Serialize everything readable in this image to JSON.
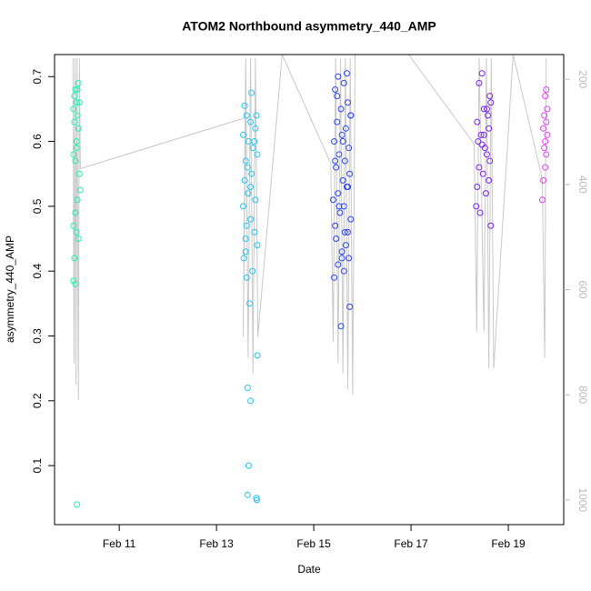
{
  "chart_data": {
    "type": "scatter",
    "title": "ATOM2 Northbound asymmetry_440_AMP",
    "xlabel": "Date",
    "ylabel": "asymmetry_440_AMP",
    "xlim": [
      9.67,
      20.14
    ],
    "ylim": [
      0.009,
      0.734
    ],
    "y2lim": [
      1047,
      153
    ],
    "xticks": [
      {
        "value": 11,
        "label": "Feb 11"
      },
      {
        "value": 13,
        "label": "Feb 13"
      },
      {
        "value": 15,
        "label": "Feb 15"
      },
      {
        "value": 17,
        "label": "Feb 17"
      },
      {
        "value": 19,
        "label": "Feb 19"
      }
    ],
    "yticks": [
      0.1,
      0.2,
      0.3,
      0.4,
      0.5,
      0.6,
      0.7
    ],
    "y2ticks": [
      200,
      400,
      600,
      800,
      1000
    ],
    "series": [
      {
        "color": "#22eeb4",
        "x": [
          10.08,
          10.12,
          10.06,
          10.1,
          10.14,
          10.16,
          10.12,
          10.06,
          10.1,
          10.18,
          10.14,
          10.1,
          10.06,
          10.12,
          10.16,
          10.08,
          10.06,
          10.1,
          10.14,
          10.16,
          10.18,
          10.08,
          10.12,
          10.2,
          10.13
        ],
        "values": [
          0.67,
          0.66,
          0.65,
          0.68,
          0.64,
          0.62,
          0.6,
          0.58,
          0.57,
          0.55,
          0.51,
          0.49,
          0.47,
          0.46,
          0.45,
          0.42,
          0.385,
          0.38,
          0.68,
          0.69,
          0.66,
          0.63,
          0.59,
          0.525,
          0.04
        ]
      },
      {
        "color": "#22c4f0",
        "x": [
          13.58,
          13.62,
          13.7,
          13.8,
          13.55,
          13.66,
          13.75,
          13.84,
          13.6,
          13.72,
          13.58,
          13.65,
          13.8,
          13.55,
          13.7,
          13.62,
          13.78,
          13.84,
          13.6,
          13.56,
          13.74,
          13.62,
          13.68,
          13.72,
          13.82,
          13.78,
          13.64,
          13.7,
          13.6,
          13.84,
          13.64,
          13.7,
          13.66,
          13.64,
          13.82,
          13.83
        ],
        "values": [
          0.655,
          0.64,
          0.63,
          0.62,
          0.61,
          0.6,
          0.59,
          0.58,
          0.57,
          0.55,
          0.54,
          0.52,
          0.51,
          0.5,
          0.48,
          0.47,
          0.46,
          0.44,
          0.43,
          0.42,
          0.4,
          0.39,
          0.35,
          0.675,
          0.64,
          0.6,
          0.56,
          0.53,
          0.45,
          0.27,
          0.22,
          0.2,
          0.1,
          0.055,
          0.05,
          0.047
        ]
      },
      {
        "color": "#2a44ee",
        "x": [
          15.5,
          15.62,
          15.44,
          15.7,
          15.56,
          15.76,
          15.48,
          15.66,
          15.58,
          15.42,
          15.72,
          15.52,
          15.64,
          15.46,
          15.74,
          15.6,
          15.68,
          15.5,
          15.4,
          15.62,
          15.54,
          15.76,
          15.44,
          15.7,
          15.46,
          15.66,
          15.58,
          15.72,
          15.5,
          15.62,
          15.42,
          15.74,
          15.56,
          15.68,
          15.48,
          15.76,
          15.6,
          15.44,
          15.7,
          15.52,
          15.64,
          15.58
        ],
        "values": [
          0.7,
          0.69,
          0.68,
          0.66,
          0.65,
          0.64,
          0.63,
          0.62,
          0.61,
          0.6,
          0.59,
          0.58,
          0.57,
          0.56,
          0.55,
          0.54,
          0.53,
          0.52,
          0.51,
          0.5,
          0.49,
          0.48,
          0.47,
          0.46,
          0.45,
          0.44,
          0.43,
          0.42,
          0.41,
          0.4,
          0.39,
          0.345,
          0.315,
          0.705,
          0.67,
          0.64,
          0.6,
          0.57,
          0.53,
          0.5,
          0.46,
          0.42
        ]
      },
      {
        "color": "#7a22ee",
        "x": [
          18.46,
          18.4,
          18.62,
          18.64,
          18.5,
          18.58,
          18.36,
          18.6,
          18.44,
          18.38,
          18.52,
          18.56,
          18.62,
          18.4,
          18.48,
          18.6,
          18.36,
          18.54,
          18.34,
          18.42,
          18.64,
          18.56,
          18.5,
          18.46
        ],
        "values": [
          0.705,
          0.69,
          0.67,
          0.66,
          0.65,
          0.64,
          0.63,
          0.62,
          0.61,
          0.6,
          0.59,
          0.58,
          0.57,
          0.56,
          0.55,
          0.54,
          0.53,
          0.52,
          0.5,
          0.49,
          0.47,
          0.65,
          0.61,
          0.595
        ]
      },
      {
        "color": "#e040ee",
        "x": [
          19.78,
          19.76,
          19.8,
          19.74,
          19.78,
          19.72,
          19.8,
          19.76,
          19.74,
          19.78,
          19.76,
          19.72,
          19.7
        ],
        "values": [
          0.68,
          0.67,
          0.65,
          0.64,
          0.63,
          0.62,
          0.61,
          0.6,
          0.59,
          0.58,
          0.56,
          0.54,
          0.51
        ]
      },
      {
        "type": "line",
        "axis": "y2",
        "color": "#c8c8c8",
        "x": [
          10.05,
          10.07,
          10.09,
          10.11,
          10.13,
          10.16,
          10.18,
          10.2,
          13.6,
          13.55,
          13.6,
          13.65,
          13.7,
          13.75,
          13.8,
          13.85,
          14.35,
          15.35,
          15.4,
          15.45,
          15.5,
          15.55,
          15.6,
          15.65,
          15.7,
          15.75,
          15.8,
          15.85,
          16.95,
          18.3,
          18.35,
          18.4,
          18.5,
          18.55,
          18.6,
          18.65,
          18.7,
          19.1,
          19.7,
          19.75,
          19.78
        ],
        "values": [
          160,
          740,
          160,
          780,
          160,
          810,
          160,
          370,
          273,
          690,
          160,
          730,
          160,
          760,
          160,
          690,
          153,
          360,
          700,
          160,
          740,
          160,
          760,
          160,
          790,
          160,
          800,
          153,
          153,
          323,
          680,
          160,
          680,
          160,
          750,
          160,
          750,
          153,
          390,
          730,
          160
        ]
      }
    ]
  }
}
